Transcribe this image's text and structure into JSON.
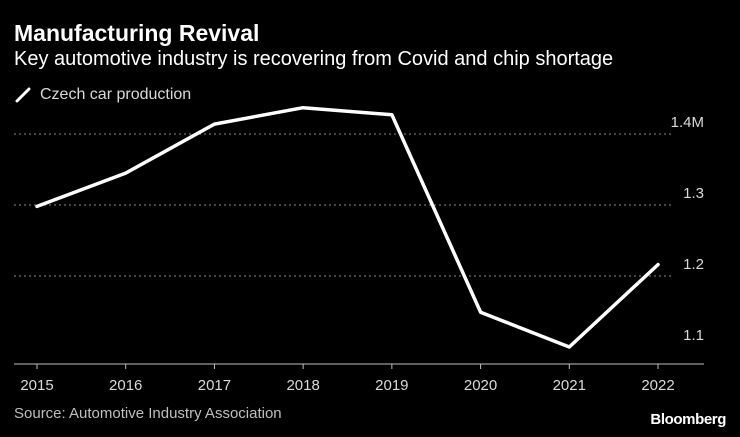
{
  "title": "Manufacturing Revival",
  "subtitle": "Key automotive industry is recovering from Covid and chip shortage",
  "source": "Source: Automotive Industry Association",
  "brand": "Bloomberg",
  "colors": {
    "background": "#000000",
    "line": "#ffffff",
    "grid": "#8c8c8c",
    "text": "#d9d9d9"
  },
  "chart_data": {
    "type": "line",
    "title": "Manufacturing Revival",
    "subtitle": "Key automotive industry is recovering from Covid and chip shortage",
    "xlabel": "",
    "ylabel": "",
    "x": [
      "2015",
      "2016",
      "2017",
      "2018",
      "2019",
      "2020",
      "2021",
      "2022"
    ],
    "series": [
      {
        "name": "Czech car production",
        "values": [
          1.298,
          1.345,
          1.414,
          1.437,
          1.427,
          1.149,
          1.1,
          1.216
        ]
      }
    ],
    "y_ticks": [
      {
        "value": 1.4,
        "label": "1.4M"
      },
      {
        "value": 1.3,
        "label": "1.3"
      },
      {
        "value": 1.2,
        "label": "1.2"
      },
      {
        "value": 1.1,
        "label": "1.1"
      }
    ],
    "ylim": [
      1.09,
      1.44
    ],
    "grid": true,
    "legend_position": "top-left"
  }
}
